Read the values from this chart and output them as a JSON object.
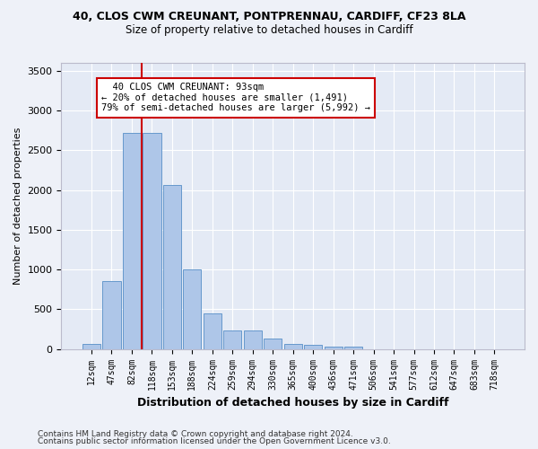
{
  "title_line1": "40, CLOS CWM CREUNANT, PONTPRENNAU, CARDIFF, CF23 8LA",
  "title_line2": "Size of property relative to detached houses in Cardiff",
  "xlabel": "Distribution of detached houses by size in Cardiff",
  "ylabel": "Number of detached properties",
  "footnote1": "Contains HM Land Registry data © Crown copyright and database right 2024.",
  "footnote2": "Contains public sector information licensed under the Open Government Licence v3.0.",
  "bar_labels": [
    "12sqm",
    "47sqm",
    "82sqm",
    "118sqm",
    "153sqm",
    "188sqm",
    "224sqm",
    "259sqm",
    "294sqm",
    "330sqm",
    "365sqm",
    "400sqm",
    "436sqm",
    "471sqm",
    "506sqm",
    "541sqm",
    "577sqm",
    "612sqm",
    "647sqm",
    "683sqm",
    "718sqm"
  ],
  "bar_values": [
    60,
    850,
    2720,
    2720,
    2060,
    1000,
    450,
    230,
    230,
    130,
    60,
    55,
    30,
    25,
    0,
    0,
    0,
    0,
    0,
    0,
    0
  ],
  "bar_color": "#aec6e8",
  "bar_edge_color": "#6699cc",
  "ylim": [
    0,
    3600
  ],
  "yticks": [
    0,
    500,
    1000,
    1500,
    2000,
    2500,
    3000,
    3500
  ],
  "vline_x": 2.5,
  "vline_color": "#cc0000",
  "annotation_text": "  40 CLOS CWM CREUNANT: 93sqm\n← 20% of detached houses are smaller (1,491)\n79% of semi-detached houses are larger (5,992) →",
  "background_color": "#eef1f8",
  "plot_bg_color": "#e4eaf5",
  "grid_color": "#ffffff",
  "title1_fontsize": 9,
  "title2_fontsize": 8.5
}
